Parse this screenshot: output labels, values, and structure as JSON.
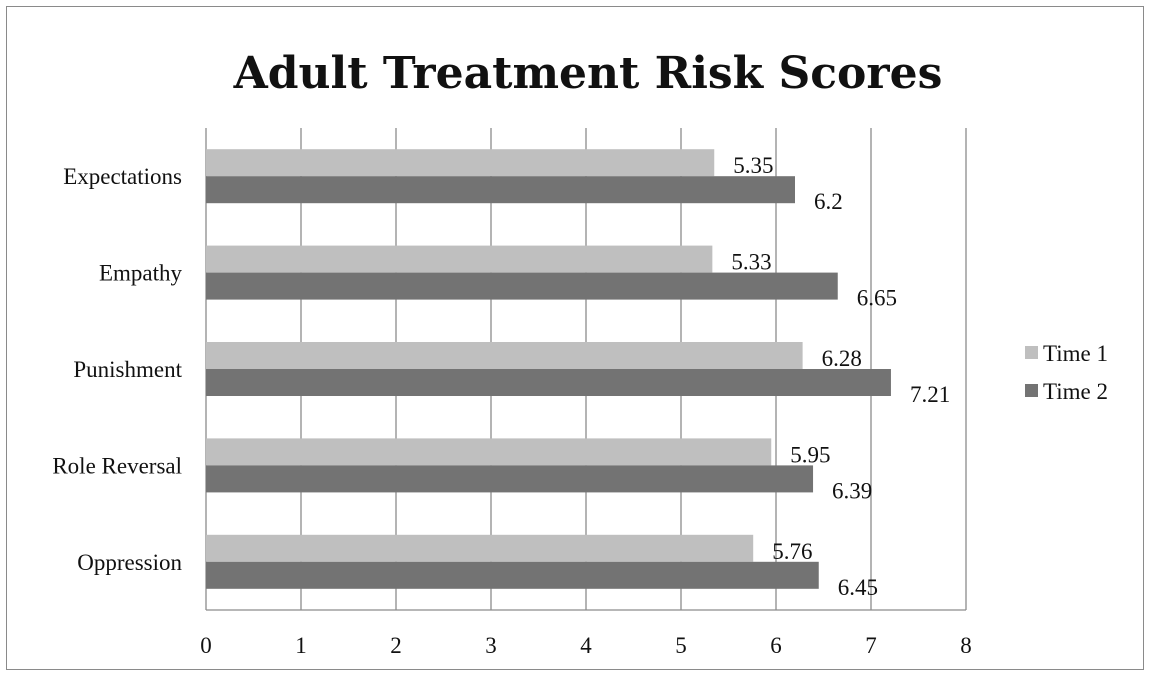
{
  "chart_data": {
    "type": "bar",
    "orientation": "horizontal",
    "title": "Adult Treatment Risk Scores",
    "xlabel": "",
    "ylabel": "",
    "categories": [
      "Expectations",
      "Empathy",
      "Punishment",
      "Role Reversal",
      "Oppression"
    ],
    "series": [
      {
        "name": "Time 1",
        "values": [
          5.35,
          5.33,
          6.28,
          5.95,
          5.76
        ],
        "color": "#bfbfbf"
      },
      {
        "name": "Time 2",
        "values": [
          6.2,
          6.65,
          7.21,
          6.39,
          6.45
        ],
        "color": "#737373"
      }
    ],
    "xlim": [
      0,
      8
    ],
    "xticks": [
      "0",
      "1",
      "2",
      "3",
      "4",
      "5",
      "6",
      "7",
      "8"
    ],
    "grid": true,
    "legend_position": "right",
    "data_labels": true
  }
}
